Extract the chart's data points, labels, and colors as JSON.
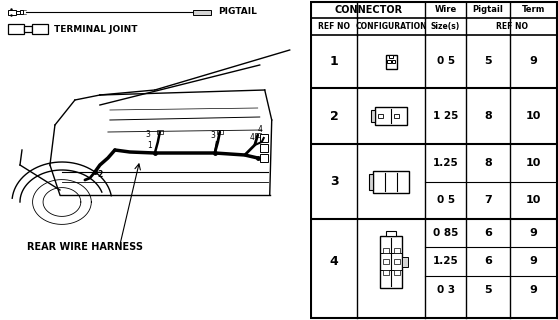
{
  "bg_color": "#ffffff",
  "table": {
    "rows": [
      {
        "ref": "1",
        "wire": [
          "0 5"
        ],
        "pigtail": [
          "5"
        ],
        "term": [
          "9"
        ]
      },
      {
        "ref": "2",
        "wire": [
          "1 25"
        ],
        "pigtail": [
          "8"
        ],
        "term": [
          "10"
        ]
      },
      {
        "ref": "3",
        "wire": [
          "1.25",
          "0 5"
        ],
        "pigtail": [
          "8",
          "7"
        ],
        "term": [
          "10",
          "10"
        ]
      },
      {
        "ref": "4",
        "wire": [
          "0 85",
          "1.25",
          "0 3"
        ],
        "pigtail": [
          "6",
          "6",
          "5"
        ],
        "term": [
          "9",
          "9",
          "9"
        ]
      }
    ]
  }
}
